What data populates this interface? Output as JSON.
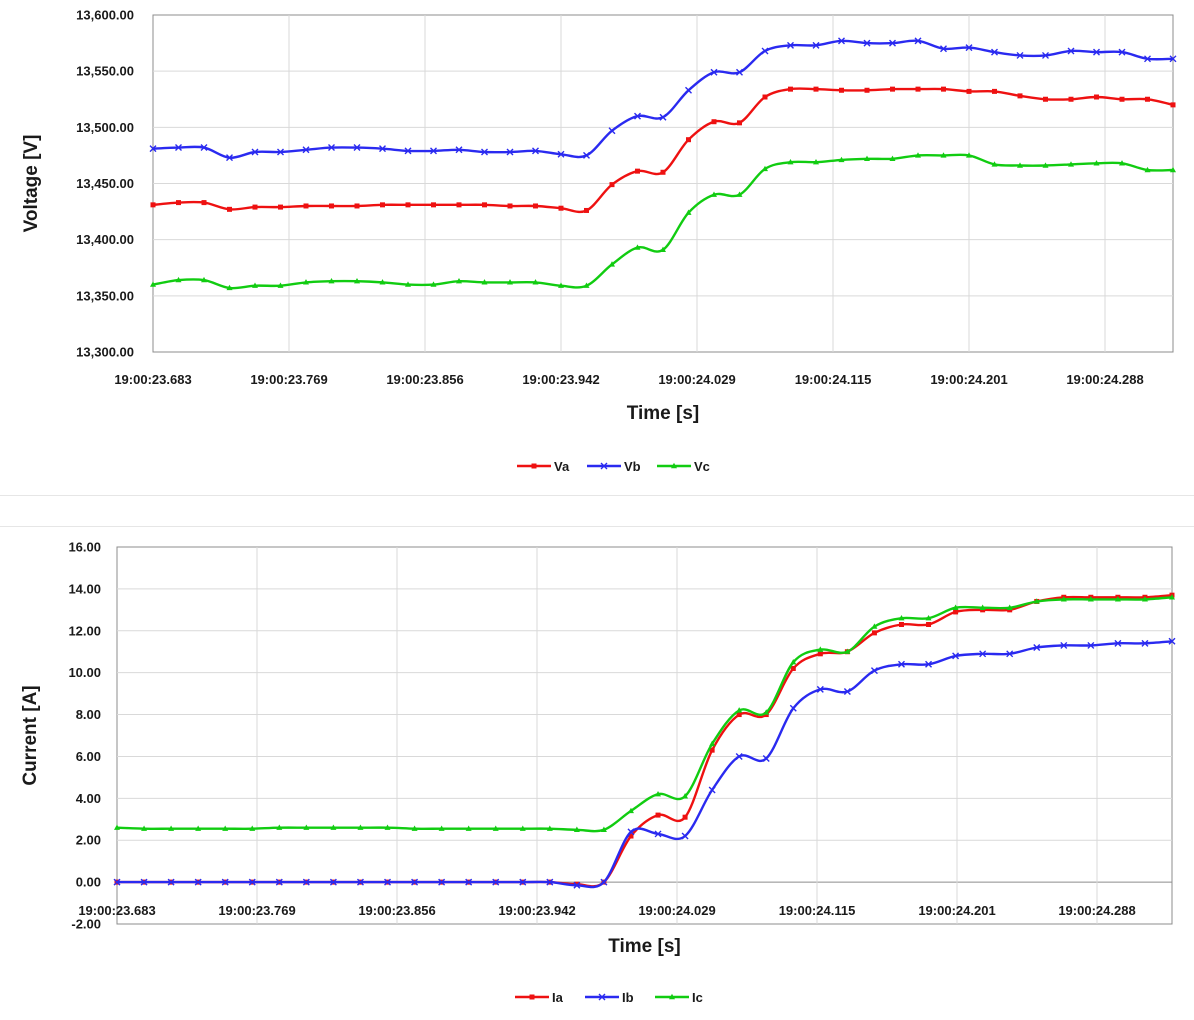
{
  "chart_data": [
    {
      "type": "line",
      "id": "voltage",
      "xlabel": "Time [s]",
      "ylabel": "Voltage [V]",
      "ylim": [
        13300,
        13600
      ],
      "y_ticks": [
        "13,300.00",
        "13,350.00",
        "13,400.00",
        "13,450.00",
        "13,500.00",
        "13,550.00",
        "13,600.00"
      ],
      "x_ticks": [
        "19:00:23.683",
        "19:00:23.769",
        "19:00:23.856",
        "19:00:23.942",
        "19:00:24.029",
        "19:00:24.115",
        "19:00:24.201",
        "19:00:24.288"
      ],
      "grid": true,
      "legend_position": "bottom-center",
      "series": [
        {
          "name": "Va",
          "color": "#ee1111",
          "marker": "square",
          "values": [
            13431,
            13433,
            13433,
            13427,
            13429,
            13429,
            13430,
            13430,
            13430,
            13431,
            13431,
            13431,
            13431,
            13431,
            13430,
            13430,
            13428,
            13426,
            13449,
            13461,
            13460,
            13489,
            13505,
            13504,
            13527,
            13534,
            13534,
            13533,
            13533,
            13534,
            13534,
            13534,
            13532,
            13532,
            13528,
            13525,
            13525,
            13527,
            13525,
            13525,
            13520
          ]
        },
        {
          "name": "Vb",
          "color": "#2a2af0",
          "marker": "x",
          "values": [
            13481,
            13482,
            13482,
            13473,
            13478,
            13478,
            13480,
            13482,
            13482,
            13481,
            13479,
            13479,
            13480,
            13478,
            13478,
            13479,
            13476,
            13475,
            13497,
            13510,
            13509,
            13533,
            13549,
            13549,
            13568,
            13573,
            13573,
            13577,
            13575,
            13575,
            13577,
            13570,
            13571,
            13567,
            13564,
            13564,
            13568,
            13567,
            13567,
            13561,
            13561
          ]
        },
        {
          "name": "Vc",
          "color": "#11cc11",
          "marker": "triangle",
          "values": [
            13360,
            13364,
            13364,
            13357,
            13359,
            13359,
            13362,
            13363,
            13363,
            13362,
            13360,
            13360,
            13363,
            13362,
            13362,
            13362,
            13359,
            13359,
            13378,
            13393,
            13391,
            13424,
            13440,
            13440,
            13463,
            13469,
            13469,
            13471,
            13472,
            13472,
            13475,
            13475,
            13475,
            13467,
            13466,
            13466,
            13467,
            13468,
            13468,
            13462,
            13462
          ]
        }
      ]
    },
    {
      "type": "line",
      "id": "current",
      "xlabel": "Time [s]",
      "ylabel": "Current [A]",
      "ylim": [
        -2,
        16
      ],
      "y_ticks": [
        "-2.00",
        "0.00",
        "2.00",
        "4.00",
        "6.00",
        "8.00",
        "10.00",
        "12.00",
        "14.00",
        "16.00"
      ],
      "x_ticks": [
        "19:00:23.683",
        "19:00:23.769",
        "19:00:23.856",
        "19:00:23.942",
        "19:00:24.029",
        "19:00:24.115",
        "19:00:24.201",
        "19:00:24.288"
      ],
      "grid": true,
      "legend_position": "bottom-center",
      "series": [
        {
          "name": "Ia",
          "color": "#ee1111",
          "marker": "square",
          "values": [
            0,
            0,
            0,
            0,
            0,
            0,
            0,
            0,
            0,
            0,
            0,
            0,
            0,
            0,
            0,
            0,
            0,
            -0.1,
            0,
            2.2,
            3.2,
            3.1,
            6.3,
            8.0,
            8.0,
            10.2,
            10.9,
            11.0,
            11.9,
            12.3,
            12.3,
            12.9,
            13.0,
            13.0,
            13.4,
            13.6,
            13.6,
            13.6,
            13.6,
            13.7
          ]
        },
        {
          "name": "Ib",
          "color": "#2a2af0",
          "marker": "x",
          "values": [
            0,
            0,
            0,
            0,
            0,
            0,
            0,
            0,
            0,
            0,
            0,
            0,
            0,
            0,
            0,
            0,
            0,
            -0.15,
            0,
            2.4,
            2.3,
            2.2,
            4.4,
            6.0,
            5.9,
            8.3,
            9.2,
            9.1,
            10.1,
            10.4,
            10.4,
            10.8,
            10.9,
            10.9,
            11.2,
            11.3,
            11.3,
            11.4,
            11.4,
            11.5
          ]
        },
        {
          "name": "Ic",
          "color": "#11cc11",
          "marker": "triangle",
          "values": [
            2.6,
            2.55,
            2.55,
            2.55,
            2.55,
            2.55,
            2.6,
            2.6,
            2.6,
            2.6,
            2.6,
            2.55,
            2.55,
            2.55,
            2.55,
            2.55,
            2.55,
            2.5,
            2.5,
            3.4,
            4.2,
            4.1,
            6.6,
            8.2,
            8.1,
            10.5,
            11.1,
            11.0,
            12.2,
            12.6,
            12.6,
            13.1,
            13.1,
            13.1,
            13.4,
            13.5,
            13.5,
            13.5,
            13.5,
            13.6
          ]
        }
      ]
    }
  ]
}
